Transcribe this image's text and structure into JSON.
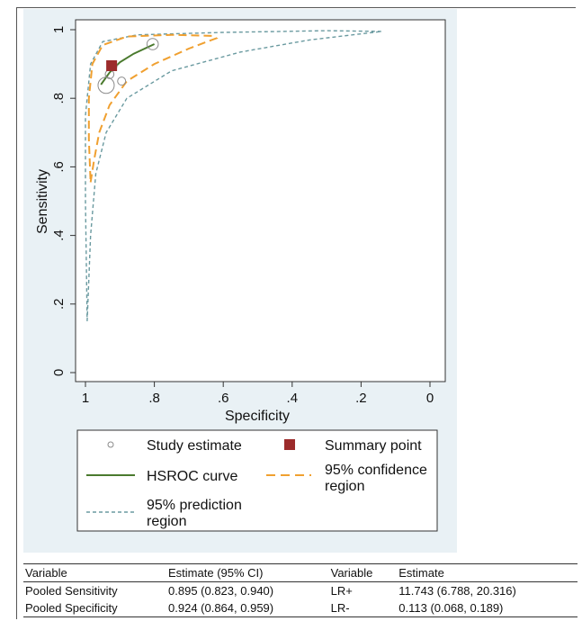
{
  "chart_data": {
    "type": "scatter",
    "title": "",
    "xlabel": "Specificity",
    "ylabel": "Sensitivity",
    "xlim": [
      1,
      0
    ],
    "ylim": [
      0,
      1
    ],
    "x_ticks": [
      "1",
      ".8",
      ".6",
      ".4",
      ".2",
      "0"
    ],
    "x_tick_values": [
      1,
      0.8,
      0.6,
      0.4,
      0.2,
      0
    ],
    "y_ticks": [
      "0",
      ".2",
      ".4",
      ".6",
      ".8",
      "1"
    ],
    "y_tick_values": [
      0,
      0.2,
      0.4,
      0.6,
      0.8,
      1
    ],
    "grid": false,
    "legend_position": "bottom",
    "series": [
      {
        "name": "Study estimate",
        "kind": "points",
        "color": "#8a8a8a",
        "points": [
          {
            "x": 0.805,
            "y": 0.958,
            "weight": 2.2
          },
          {
            "x": 0.93,
            "y": 0.87,
            "weight": 1.2
          },
          {
            "x": 0.92,
            "y": 0.895,
            "weight": 1.0
          },
          {
            "x": 0.895,
            "y": 0.85,
            "weight": 1.0
          },
          {
            "x": 0.94,
            "y": 0.838,
            "weight": 4.0
          }
        ]
      },
      {
        "name": "Summary point",
        "kind": "summary",
        "color": "#9c2b2b",
        "points": [
          {
            "x": 0.924,
            "y": 0.895
          }
        ]
      },
      {
        "name": "HSROC curve",
        "kind": "line",
        "color": "#4a7a2e",
        "points": [
          {
            "x": 0.955,
            "y": 0.84
          },
          {
            "x": 0.93,
            "y": 0.875
          },
          {
            "x": 0.9,
            "y": 0.905
          },
          {
            "x": 0.86,
            "y": 0.93
          },
          {
            "x": 0.8,
            "y": 0.958
          }
        ]
      },
      {
        "name": "95% confidence region",
        "kind": "dashed-line",
        "color": "#f0a030",
        "points": [
          {
            "x": 0.985,
            "y": 0.555
          },
          {
            "x": 0.975,
            "y": 0.62
          },
          {
            "x": 0.96,
            "y": 0.7
          },
          {
            "x": 0.93,
            "y": 0.78
          },
          {
            "x": 0.88,
            "y": 0.85
          },
          {
            "x": 0.8,
            "y": 0.9
          },
          {
            "x": 0.7,
            "y": 0.945
          },
          {
            "x": 0.62,
            "y": 0.975
          },
          {
            "x": 0.63,
            "y": 0.982
          },
          {
            "x": 0.75,
            "y": 0.985
          },
          {
            "x": 0.88,
            "y": 0.98
          },
          {
            "x": 0.95,
            "y": 0.955
          },
          {
            "x": 0.98,
            "y": 0.9
          },
          {
            "x": 0.99,
            "y": 0.8
          },
          {
            "x": 0.99,
            "y": 0.68
          },
          {
            "x": 0.985,
            "y": 0.555
          }
        ]
      },
      {
        "name": "95% prediction region",
        "kind": "dotted-line",
        "color": "#6a9aa0",
        "points": [
          {
            "x": 0.995,
            "y": 0.15
          },
          {
            "x": 0.985,
            "y": 0.4
          },
          {
            "x": 0.97,
            "y": 0.58
          },
          {
            "x": 0.94,
            "y": 0.7
          },
          {
            "x": 0.88,
            "y": 0.8
          },
          {
            "x": 0.75,
            "y": 0.88
          },
          {
            "x": 0.55,
            "y": 0.935
          },
          {
            "x": 0.35,
            "y": 0.97
          },
          {
            "x": 0.14,
            "y": 0.995
          },
          {
            "x": 0.3,
            "y": 0.997
          },
          {
            "x": 0.6,
            "y": 0.992
          },
          {
            "x": 0.85,
            "y": 0.985
          },
          {
            "x": 0.95,
            "y": 0.965
          },
          {
            "x": 0.985,
            "y": 0.9
          },
          {
            "x": 1.0,
            "y": 0.75
          },
          {
            "x": 1.0,
            "y": 0.5
          },
          {
            "x": 0.995,
            "y": 0.15
          }
        ]
      }
    ],
    "legend": [
      {
        "label": "Study estimate",
        "symbol": "circle"
      },
      {
        "label": "Summary point",
        "symbol": "square"
      },
      {
        "label": "HSROC curve",
        "symbol": "solid"
      },
      {
        "label": "95% confidence region",
        "symbol": "dashed"
      },
      {
        "label": "95% prediction region",
        "symbol": "dotted"
      }
    ]
  },
  "table": {
    "headers": [
      "Variable",
      "Estimate (95% CI)",
      "Variable",
      "Estimate"
    ],
    "rows": [
      [
        "Pooled Sensitivity",
        "0.895 (0.823, 0.940)",
        "LR+",
        "11.743 (6.788, 20.316)"
      ],
      [
        "Pooled Specificity",
        "0.924 (0.864, 0.959)",
        "LR-",
        "0.113 (0.068, 0.189)"
      ]
    ]
  },
  "legend_text": {
    "study": "Study estimate",
    "summary": "Summary point",
    "hsroc": "HSROC curve",
    "conf_line1": "95% confidence",
    "conf_line2": "region",
    "pred_line1": "95% prediction",
    "pred_line2": "region"
  }
}
